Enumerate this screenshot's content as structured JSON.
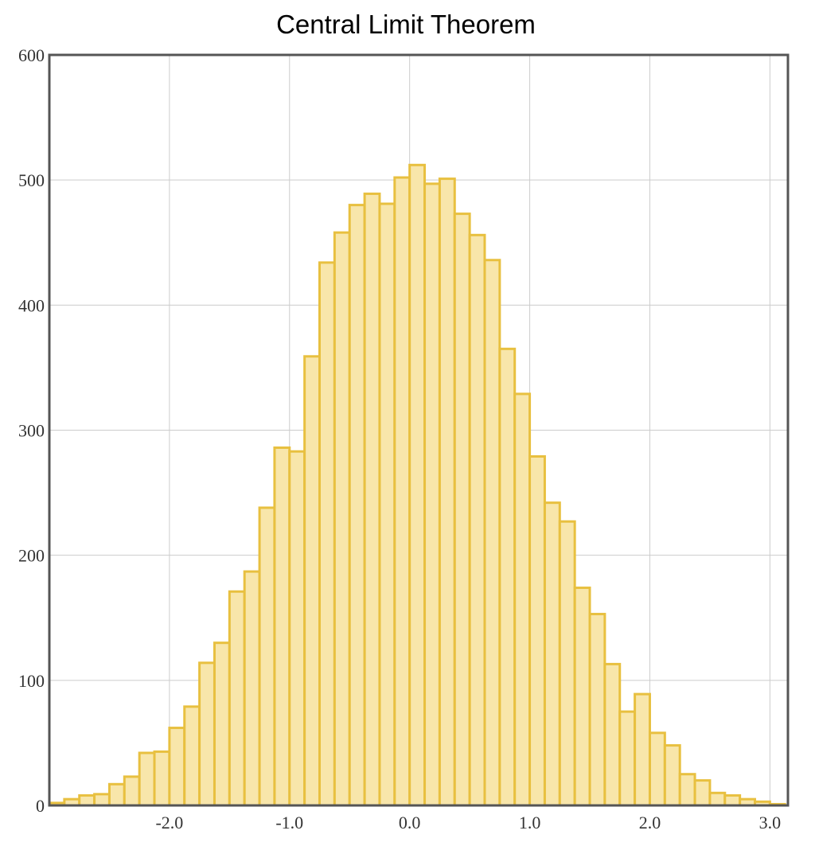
{
  "chart_data": {
    "type": "bar",
    "title": "Central Limit Theorem",
    "xlabel": "",
    "ylabel": "",
    "xlim": [
      -3.0,
      3.15
    ],
    "ylim": [
      0,
      600
    ],
    "grid": true,
    "bin_width": 0.125,
    "bin_start": -3.0,
    "x_ticks": [
      {
        "value": -2.0,
        "label": "-2.0"
      },
      {
        "value": -1.0,
        "label": "-1.0"
      },
      {
        "value": 0.0,
        "label": "0.0"
      },
      {
        "value": 1.0,
        "label": "1.0"
      },
      {
        "value": 2.0,
        "label": "2.0"
      },
      {
        "value": 3.0,
        "label": "3.0"
      }
    ],
    "y_ticks": [
      {
        "value": 0,
        "label": "0"
      },
      {
        "value": 100,
        "label": "100"
      },
      {
        "value": 200,
        "label": "200"
      },
      {
        "value": 300,
        "label": "300"
      },
      {
        "value": 400,
        "label": "400"
      },
      {
        "value": 500,
        "label": "500"
      },
      {
        "value": 600,
        "label": "600"
      }
    ],
    "values": [
      2,
      5,
      8,
      9,
      17,
      23,
      42,
      43,
      62,
      79,
      114,
      130,
      171,
      187,
      238,
      286,
      283,
      359,
      434,
      458,
      480,
      489,
      481,
      502,
      512,
      497,
      501,
      473,
      456,
      436,
      365,
      329,
      279,
      242,
      227,
      174,
      153,
      113,
      75,
      89,
      58,
      48,
      25,
      20,
      10,
      8,
      5,
      3,
      1
    ],
    "colors": {
      "bar_fill": "#f8e6aa",
      "bar_stroke": "#e8c040",
      "grid": "#cccccc",
      "frame": "#555555"
    }
  }
}
